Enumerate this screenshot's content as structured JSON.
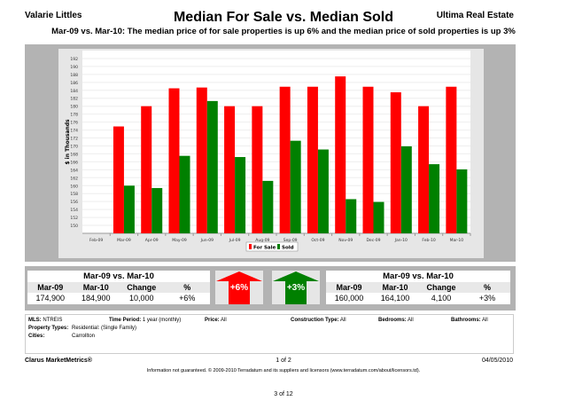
{
  "header": {
    "agent": "Valarie Littles",
    "title": "Median For Sale vs. Median Sold",
    "company": "Ultima Real Estate",
    "subtitle": "Mar-09 vs. Mar-10:  The median price of for sale properties is up 6% and the median price of sold properties is up 3%"
  },
  "chart_data": {
    "type": "bar",
    "ylabel": "$ in Thousands",
    "ylim": [
      148,
      194
    ],
    "yticks": [
      150,
      152,
      154,
      156,
      158,
      160,
      162,
      164,
      166,
      168,
      170,
      172,
      174,
      176,
      178,
      180,
      182,
      184,
      186,
      188,
      190,
      192
    ],
    "grid": true,
    "legend_placement": "bottom-center",
    "categories": [
      "Feb-09",
      "Mar-09",
      "Apr-09",
      "May-09",
      "Jun-09",
      "Jul-09",
      "Aug-09",
      "Sep-09",
      "Oct-09",
      "Nov-09",
      "Dec-09",
      "Jan-10",
      "Feb-10",
      "Mar-10"
    ],
    "series": [
      {
        "name": "For Sale",
        "color": "#ff0000",
        "values": [
          null,
          174.9,
          180,
          184.5,
          184.7,
          180,
          180,
          184.9,
          184.9,
          187.5,
          184.9,
          183.5,
          180,
          184.9
        ]
      },
      {
        "name": "Sold",
        "color": "#008000",
        "values": [
          null,
          160,
          159.4,
          167.5,
          181.3,
          167.2,
          161.2,
          171.3,
          169.1,
          156.6,
          155.9,
          169.9,
          165.4,
          164.1
        ]
      }
    ]
  },
  "for_sale_summary": {
    "title": "Mar-09 vs. Mar-10",
    "columns": [
      "Mar-09",
      "Mar-10",
      "Change",
      "%"
    ],
    "values": [
      "174,900",
      "184,900",
      "10,000",
      "+6%"
    ],
    "arrow": "+6%",
    "arrow_color": "#ff0000"
  },
  "sold_summary": {
    "title": "Mar-09 vs. Mar-10",
    "columns": [
      "Mar-09",
      "Mar-10",
      "Change",
      "%"
    ],
    "values": [
      "160,000",
      "164,100",
      "4,100",
      "+3%"
    ],
    "arrow": "+3%",
    "arrow_color": "#008000"
  },
  "filters": {
    "mls_label": "MLS:",
    "mls": "NTREIS",
    "time_label": "Time Period:",
    "time": "1 year (monthly)",
    "price_label": "Price:",
    "price": "All",
    "construction_label": "Construction Type:",
    "construction": "All",
    "bedrooms_label": "Bedrooms:",
    "bedrooms": "All",
    "bathrooms_label": "Bathrooms:",
    "bathrooms": "All",
    "ptype_label": "Property Types:",
    "ptype": "Residential: (Single Family)",
    "cities_label": "Cities:",
    "cities": "Carrollton"
  },
  "footer": {
    "brand": "Clarus MarketMetrics®",
    "page": "1 of 2",
    "date": "04/05/2010",
    "note": "Information not guaranteed.  © 2009-2010 Terradatum and its suppliers and licensors (www.terradatum.com/about/licensors.td).",
    "doc_page": "3 of 12"
  }
}
